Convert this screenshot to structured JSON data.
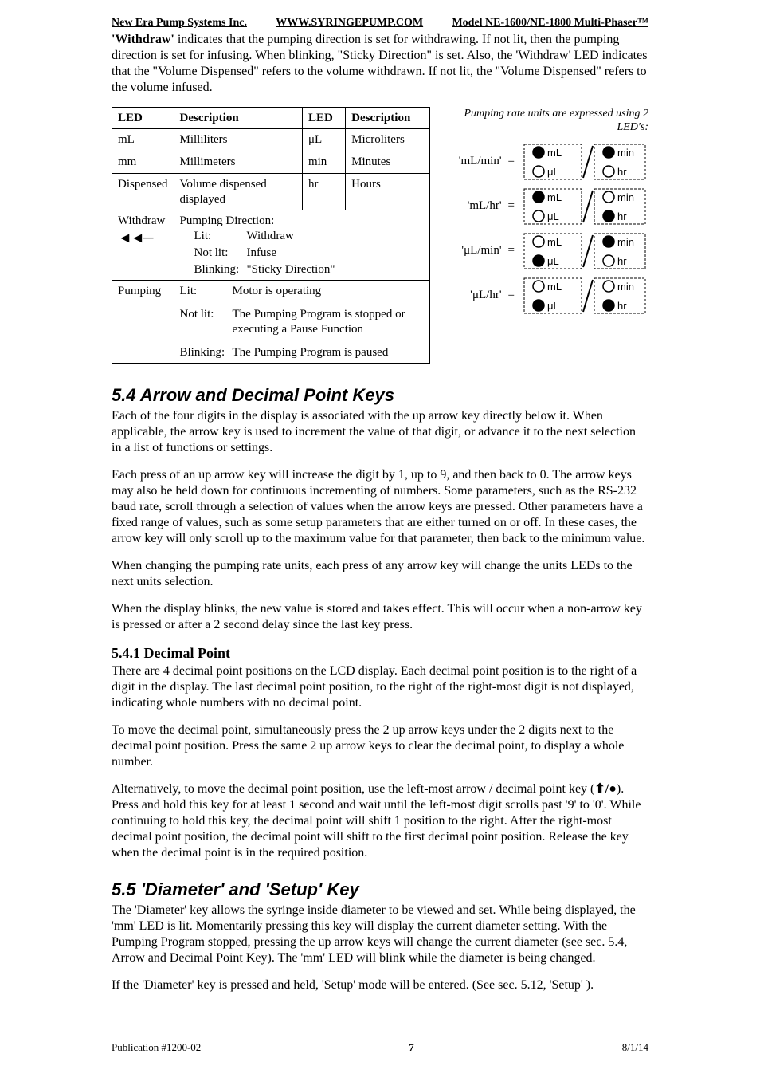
{
  "header": {
    "left": "New Era Pump Systems Inc.",
    "center": "WWW.SYRINGEPUMP.COM",
    "right": "Model NE-1600/NE-1800 Multi-Phaser™"
  },
  "intro": "'Withdraw' indicates that the pumping direction is set for withdrawing.  If not lit, then the pumping direction is set for infusing.  When blinking, \"Sticky Direction\" is set.  Also, the 'Withdraw' LED indicates that the \"Volume Dispensed\" refers to the volume withdrawn.  If not lit, the \"Volume Dispensed\" refers to the volume infused.",
  "intro_lead": "'Withdraw'",
  "intro_rest": " indicates that the pumping direction is set for withdrawing.  If not lit, then the pumping direction is set for infusing.  When blinking, \"Sticky Direction\" is set.  Also, the 'Withdraw' LED indicates that the \"Volume Dispensed\" refers to the volume withdrawn.  If not lit, the \"Volume Dispensed\" refers to the volume infused.",
  "table": {
    "headers": [
      "LED",
      "Description",
      "LED",
      "Description"
    ],
    "rows_simple": [
      [
        "mL",
        "Milliliters",
        "μL",
        "Microliters"
      ],
      [
        "mm",
        "Millimeters",
        "min",
        "Minutes"
      ],
      [
        "Dispensed",
        "Volume dispensed displayed",
        "hr",
        "Hours"
      ]
    ],
    "withdraw": {
      "led": "Withdraw",
      "arrow": "◄◄─",
      "title": "Pumping Direction:",
      "lines": [
        [
          "Lit:",
          "Withdraw"
        ],
        [
          "Not lit:",
          "Infuse"
        ],
        [
          "Blinking:",
          "\"Sticky Direction\""
        ]
      ]
    },
    "pumping": {
      "led": "Pumping",
      "lines": [
        [
          "Lit:",
          "Motor is operating"
        ],
        [
          "Not lit:",
          "The Pumping Program is stopped or executing a Pause Function"
        ],
        [
          "Blinking:",
          "The Pumping Program is paused"
        ]
      ]
    }
  },
  "figure": {
    "caption": "Pumping rate units are expressed using 2 LED's:",
    "rows": [
      {
        "label": "'mL/min'",
        "lit": [
          "mL",
          "min"
        ]
      },
      {
        "label": "'mL/hr'",
        "lit": [
          "mL",
          "hr"
        ]
      },
      {
        "label": "'μL/min'",
        "lit": [
          "μL",
          "min"
        ]
      },
      {
        "label": "'μL/hr'",
        "lit": [
          "μL",
          "hr"
        ]
      }
    ],
    "unit_positions": {
      "mL": "tl",
      "μL": "bl",
      "min": "tr",
      "hr": "br"
    },
    "colors": {
      "lit": "#000000",
      "unlit_stroke": "#000000",
      "unlit_fill": "#ffffff",
      "dash": "3,2",
      "text": "#000000"
    }
  },
  "sec54": {
    "title": "5.4  Arrow and Decimal Point Keys",
    "p1": "Each of the four digits in the display is associated with the up arrow key directly below it.  When applicable, the arrow key is used to increment the value of that digit, or advance it to the next selection in a list of functions or settings.",
    "p2": "Each press of an up arrow key will increase the digit by 1, up to 9, and then back to 0.  The arrow keys may also be held down for continuous incrementing of numbers.  Some parameters, such as the RS-232 baud rate, scroll through a selection of values when the arrow keys are pressed.  Other parameters have a fixed range of values, such as some setup parameters that are either turned on or off. In these cases, the arrow key will only scroll up to the maximum value for that parameter, then back to the minimum value.",
    "p3": "When changing the pumping rate units, each press of any arrow key will change the units LEDs to the next units selection.",
    "p4": "When the display blinks, the new value is stored and takes effect.  This will occur when a non-arrow key is pressed or after a 2 second delay since the last key press."
  },
  "sec541": {
    "title": "5.4.1  Decimal Point",
    "p1": "There are 4 decimal point positions on the LCD display.  Each decimal point position is to the right of a digit in the display.  The last decimal point position, to the right of the right-most digit is not displayed, indicating whole numbers with no decimal point.",
    "p2": "To move the decimal point, simultaneously press the 2 up arrow keys under the 2 digits next to the decimal point position.  Press the same 2 up arrow keys to clear the decimal point, to display a whole number.",
    "p3a": "Alternatively, to move the decimal point position, use the left-most arrow / decimal point key (",
    "p3b": ").  Press and hold this key for at least 1 second and wait until the left-most digit scrolls past '9' to '0'.  While continuing to hold this key, the decimal point will shift 1 position to the right.  After the right-most decimal point position, the decimal point will shift to the first decimal point position.  Release the key when the decimal point is in the required position.",
    "key_glyph": "⬆/●"
  },
  "sec55": {
    "title": "5.5  'Diameter' and 'Setup' Key",
    "p1": "The 'Diameter' key allows the syringe inside diameter to be viewed and set.  While being displayed, the 'mm' LED is lit.  Momentarily pressing this key will display the current diameter setting.  With the Pumping Program stopped, pressing the up arrow keys will change the current diameter (see sec. 5.4, Arrow and Decimal Point Key).  The 'mm' LED will blink while the diameter is being changed.",
    "p2": "If the 'Diameter' key is pressed and held, 'Setup' mode will be entered. (See sec. 5.12, 'Setup' )."
  },
  "footer": {
    "left": "Publication #1200-02",
    "page": "7",
    "right": "8/1/14"
  }
}
